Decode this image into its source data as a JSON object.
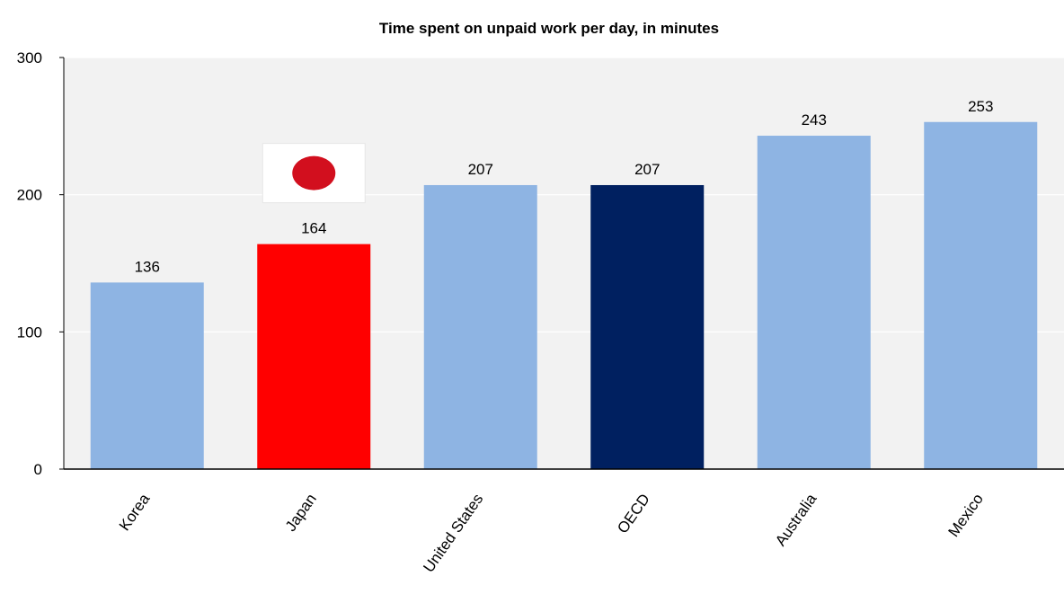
{
  "chart_data": {
    "type": "bar",
    "title": "Time spent on unpaid work per day, in minutes",
    "xlabel": "",
    "ylabel": "",
    "categories": [
      "Korea",
      "Japan",
      "United States",
      "OECD",
      "Australia",
      "Mexico"
    ],
    "values": [
      136,
      164,
      207,
      207,
      243,
      253
    ],
    "ylim": [
      0,
      300
    ],
    "yticks": [
      0,
      100,
      200,
      300
    ],
    "grid": true,
    "legend": "none",
    "colors": {
      "plot_background": "#f2f2f2",
      "gridline": "#ffffff",
      "axis": "#000000",
      "default_bar": "#8eb4e3",
      "highlight_bars": {
        "Japan": "#ff0000",
        "OECD": "#002060"
      }
    },
    "annotations": [
      {
        "type": "flag-icon",
        "name": "japan-flag-icon",
        "category": "Japan",
        "flag_bg": "#ffffff",
        "disc_color": "#d20f1e"
      }
    ]
  }
}
